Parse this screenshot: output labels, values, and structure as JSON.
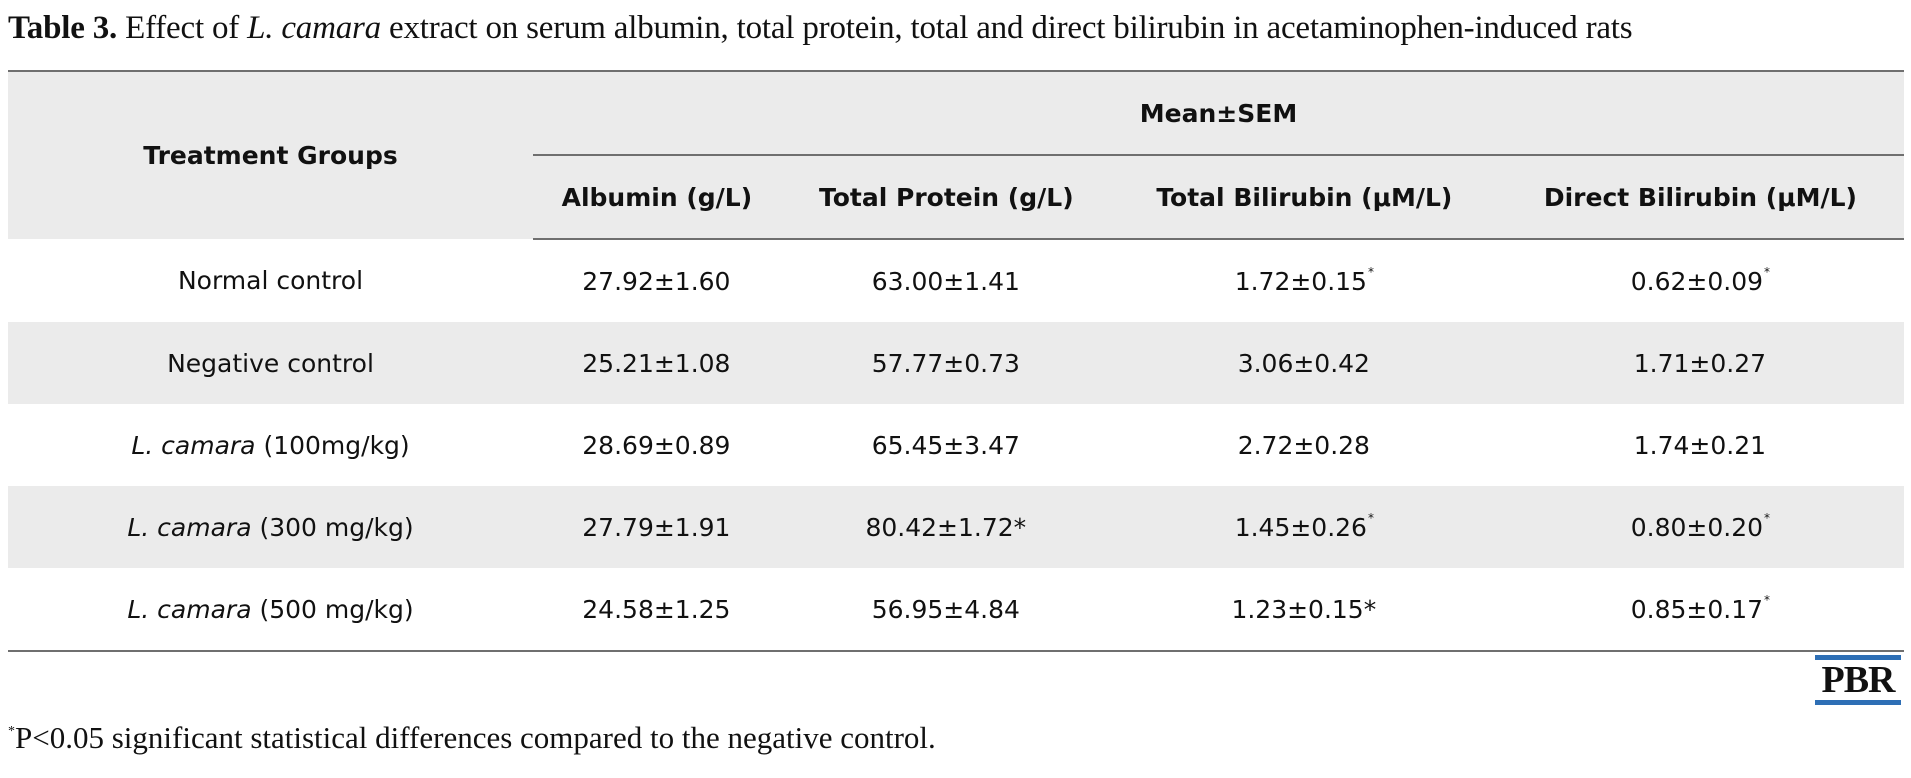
{
  "caption": {
    "label": "Table 3.",
    "text_before": " Effect of ",
    "species": "L. camara",
    "text_after": " extract on serum albumin, total protein, total and direct bilirubin in acetaminophen-induced rats"
  },
  "table": {
    "group_header": "Treatment Groups",
    "span_header": "Mean±SEM",
    "columns": [
      "Albumin (g/L)",
      "Total Protein (g/L)",
      "Total Bilirubin (μM/L)",
      "Direct Bilirubin (μM/L)"
    ],
    "rows": [
      {
        "group_plain": "Normal control",
        "group_italic": "",
        "group_rest": "",
        "cells": [
          {
            "v": "27.92±1.60",
            "s": ""
          },
          {
            "v": "63.00±1.41",
            "s": ""
          },
          {
            "v": "1.72±0.15",
            "s": "*"
          },
          {
            "v": "0.62±0.09",
            "s": "*"
          }
        ]
      },
      {
        "group_plain": "Negative control",
        "group_italic": "",
        "group_rest": "",
        "cells": [
          {
            "v": "25.21±1.08",
            "s": ""
          },
          {
            "v": "57.77±0.73",
            "s": ""
          },
          {
            "v": "3.06±0.42",
            "s": ""
          },
          {
            "v": "1.71±0.27",
            "s": ""
          }
        ]
      },
      {
        "group_plain": "",
        "group_italic": "L. camara",
        "group_rest": " (100mg/kg)",
        "cells": [
          {
            "v": "28.69±0.89",
            "s": ""
          },
          {
            "v": "65.45±3.47",
            "s": ""
          },
          {
            "v": "2.72±0.28",
            "s": ""
          },
          {
            "v": "1.74±0.21",
            "s": ""
          }
        ]
      },
      {
        "group_plain": "",
        "group_italic": "L. camara",
        "group_rest": " (300 mg/kg)",
        "cells": [
          {
            "v": "27.79±1.91",
            "s": ""
          },
          {
            "v": "80.42±1.72*",
            "s": ""
          },
          {
            "v": "1.45±0.26",
            "s": "*"
          },
          {
            "v": "0.80±0.20",
            "s": "*"
          }
        ]
      },
      {
        "group_plain": "",
        "group_italic": "L. camara",
        "group_rest": " (500 mg/kg)",
        "cells": [
          {
            "v": "24.58±1.25",
            "s": ""
          },
          {
            "v": "56.95±4.84",
            "s": ""
          },
          {
            "v": "1.23±0.15*",
            "s": ""
          },
          {
            "v": "0.85±0.17",
            "s": "*"
          }
        ]
      }
    ]
  },
  "logo": {
    "text": "PBR",
    "rule_color": "#2e6fb5"
  },
  "footnote": {
    "mark": "*",
    "text": "P<0.05 significant statistical differences compared to the negative control."
  }
}
